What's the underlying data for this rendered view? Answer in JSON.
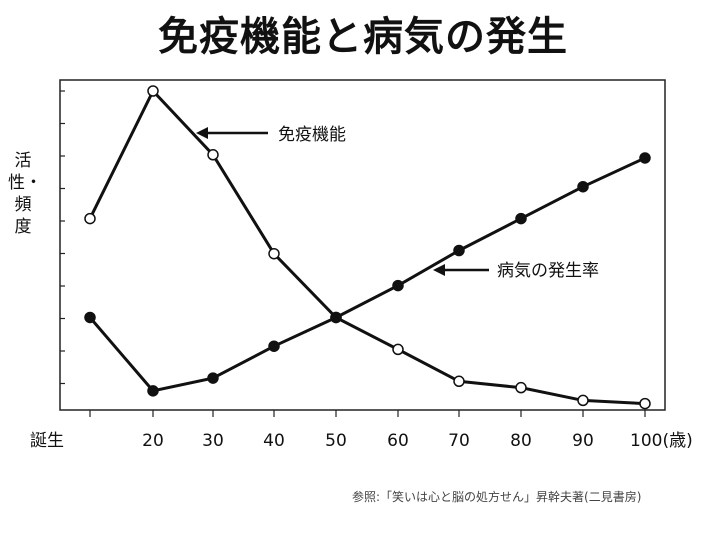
{
  "title": "免疫機能と病気の発生",
  "source_note": "参照:「笑いは心と脳の処方せん」昇幹夫著(二見書房)",
  "chart_data": {
    "type": "line",
    "title": "免疫機能と病気の発生",
    "ylabel": "活性・頻度",
    "x_tick_labels": [
      "誕生",
      "20",
      "30",
      "40",
      "50",
      "60",
      "70",
      "80",
      "90",
      "100(歳)"
    ],
    "x": [
      "誕生",
      "20",
      "30",
      "40",
      "50",
      "60",
      "70",
      "80",
      "90",
      "100"
    ],
    "ylim": [
      0,
      100
    ],
    "series": [
      {
        "name": "免疫機能",
        "marker": "open-circle",
        "values": [
          60,
          100,
          80,
          49,
          29,
          19,
          9,
          7,
          3,
          2
        ]
      },
      {
        "name": "病気の発生率",
        "marker": "filled-circle",
        "values": [
          29,
          6,
          10,
          20,
          29,
          39,
          50,
          60,
          70,
          79
        ]
      }
    ],
    "annotations": [
      {
        "text": "免疫機能",
        "series": "免疫機能"
      },
      {
        "text": "病気の発生率",
        "series": "病気の発生率"
      }
    ]
  }
}
